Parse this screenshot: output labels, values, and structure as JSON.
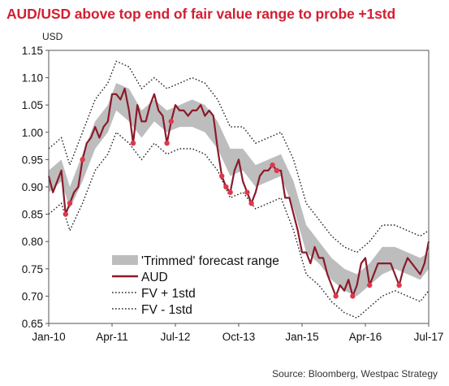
{
  "chart_data": {
    "type": "line",
    "title": "AUD/USD above top end of fair value range to probe +1std",
    "y_unit_label": "USD",
    "source": "Source: Bloomberg, Westpac Strategy",
    "ylim": [
      0.65,
      1.15
    ],
    "y_ticks": [
      "0.65",
      "0.70",
      "0.75",
      "0.80",
      "0.85",
      "0.90",
      "0.95",
      "1.00",
      "1.05",
      "1.10",
      "1.15"
    ],
    "xlim": [
      "2010-01",
      "2017-07"
    ],
    "x_ticks": [
      {
        "label": "Jan-10",
        "date": "2010-01"
      },
      {
        "label": "Apr-11",
        "date": "2011-04"
      },
      {
        "label": "Jul-12",
        "date": "2012-07"
      },
      {
        "label": "Oct-13",
        "date": "2013-10"
      },
      {
        "label": "Jan-15",
        "date": "2015-01"
      },
      {
        "label": "Apr-16",
        "date": "2016-04"
      },
      {
        "label": "Jul-17",
        "date": "2017-07"
      }
    ],
    "grid": false,
    "legend_position": "bottom-left",
    "series": [
      {
        "name": "'Trimmed' forecast range",
        "kind": "band",
        "color": "#bdbdbd",
        "points": [
          {
            "date": "2010-01",
            "low": 0.89,
            "high": 0.93
          },
          {
            "date": "2010-04",
            "low": 0.91,
            "high": 0.95
          },
          {
            "date": "2010-06",
            "low": 0.86,
            "high": 0.9
          },
          {
            "date": "2010-09",
            "low": 0.91,
            "high": 0.96
          },
          {
            "date": "2010-12",
            "low": 0.97,
            "high": 1.02
          },
          {
            "date": "2011-03",
            "low": 1.0,
            "high": 1.05
          },
          {
            "date": "2011-05",
            "low": 1.04,
            "high": 1.09
          },
          {
            "date": "2011-08",
            "low": 1.02,
            "high": 1.08
          },
          {
            "date": "2011-11",
            "low": 0.99,
            "high": 1.04
          },
          {
            "date": "2012-02",
            "low": 1.02,
            "high": 1.06
          },
          {
            "date": "2012-05",
            "low": 1.0,
            "high": 1.04
          },
          {
            "date": "2012-08",
            "low": 1.01,
            "high": 1.05
          },
          {
            "date": "2012-11",
            "low": 1.01,
            "high": 1.06
          },
          {
            "date": "2013-02",
            "low": 1.0,
            "high": 1.05
          },
          {
            "date": "2013-05",
            "low": 0.97,
            "high": 1.02
          },
          {
            "date": "2013-08",
            "low": 0.92,
            "high": 0.97
          },
          {
            "date": "2013-11",
            "low": 0.93,
            "high": 0.97
          },
          {
            "date": "2014-02",
            "low": 0.9,
            "high": 0.94
          },
          {
            "date": "2014-05",
            "low": 0.91,
            "high": 0.95
          },
          {
            "date": "2014-08",
            "low": 0.92,
            "high": 0.96
          },
          {
            "date": "2014-11",
            "low": 0.86,
            "high": 0.91
          },
          {
            "date": "2015-02",
            "low": 0.78,
            "high": 0.83
          },
          {
            "date": "2015-05",
            "low": 0.76,
            "high": 0.8
          },
          {
            "date": "2015-08",
            "low": 0.73,
            "high": 0.77
          },
          {
            "date": "2015-11",
            "low": 0.71,
            "high": 0.75
          },
          {
            "date": "2016-02",
            "low": 0.7,
            "high": 0.74
          },
          {
            "date": "2016-05",
            "low": 0.72,
            "high": 0.76
          },
          {
            "date": "2016-08",
            "low": 0.74,
            "high": 0.79
          },
          {
            "date": "2016-11",
            "low": 0.75,
            "high": 0.79
          },
          {
            "date": "2017-02",
            "low": 0.74,
            "high": 0.78
          },
          {
            "date": "2017-05",
            "low": 0.73,
            "high": 0.77
          },
          {
            "date": "2017-07",
            "low": 0.75,
            "high": 0.78
          }
        ]
      },
      {
        "name": "AUD",
        "kind": "line",
        "color": "#8b1a2b",
        "points": [
          {
            "date": "2010-01",
            "value": 0.92
          },
          {
            "date": "2010-02",
            "value": 0.89
          },
          {
            "date": "2010-03",
            "value": 0.91
          },
          {
            "date": "2010-04",
            "value": 0.93
          },
          {
            "date": "2010-05",
            "value": 0.85
          },
          {
            "date": "2010-06",
            "value": 0.87
          },
          {
            "date": "2010-07",
            "value": 0.89
          },
          {
            "date": "2010-08",
            "value": 0.9
          },
          {
            "date": "2010-09",
            "value": 0.95
          },
          {
            "date": "2010-10",
            "value": 0.98
          },
          {
            "date": "2010-11",
            "value": 0.99
          },
          {
            "date": "2010-12",
            "value": 1.01
          },
          {
            "date": "2011-01",
            "value": 0.99
          },
          {
            "date": "2011-02",
            "value": 1.01
          },
          {
            "date": "2011-03",
            "value": 1.02
          },
          {
            "date": "2011-04",
            "value": 1.07
          },
          {
            "date": "2011-05",
            "value": 1.07
          },
          {
            "date": "2011-06",
            "value": 1.06
          },
          {
            "date": "2011-07",
            "value": 1.08
          },
          {
            "date": "2011-08",
            "value": 1.04
          },
          {
            "date": "2011-09",
            "value": 0.98
          },
          {
            "date": "2011-10",
            "value": 1.05
          },
          {
            "date": "2011-11",
            "value": 1.02
          },
          {
            "date": "2011-12",
            "value": 1.02
          },
          {
            "date": "2012-01",
            "value": 1.05
          },
          {
            "date": "2012-02",
            "value": 1.07
          },
          {
            "date": "2012-03",
            "value": 1.04
          },
          {
            "date": "2012-04",
            "value": 1.03
          },
          {
            "date": "2012-05",
            "value": 0.98
          },
          {
            "date": "2012-06",
            "value": 1.02
          },
          {
            "date": "2012-07",
            "value": 1.05
          },
          {
            "date": "2012-08",
            "value": 1.04
          },
          {
            "date": "2012-09",
            "value": 1.04
          },
          {
            "date": "2012-10",
            "value": 1.03
          },
          {
            "date": "2012-11",
            "value": 1.04
          },
          {
            "date": "2012-12",
            "value": 1.04
          },
          {
            "date": "2013-01",
            "value": 1.05
          },
          {
            "date": "2013-02",
            "value": 1.03
          },
          {
            "date": "2013-03",
            "value": 1.04
          },
          {
            "date": "2013-04",
            "value": 1.03
          },
          {
            "date": "2013-05",
            "value": 0.97
          },
          {
            "date": "2013-06",
            "value": 0.92
          },
          {
            "date": "2013-07",
            "value": 0.9
          },
          {
            "date": "2013-08",
            "value": 0.89
          },
          {
            "date": "2013-09",
            "value": 0.93
          },
          {
            "date": "2013-10",
            "value": 0.95
          },
          {
            "date": "2013-11",
            "value": 0.91
          },
          {
            "date": "2013-12",
            "value": 0.89
          },
          {
            "date": "2014-01",
            "value": 0.87
          },
          {
            "date": "2014-02",
            "value": 0.89
          },
          {
            "date": "2014-03",
            "value": 0.92
          },
          {
            "date": "2014-04",
            "value": 0.93
          },
          {
            "date": "2014-05",
            "value": 0.93
          },
          {
            "date": "2014-06",
            "value": 0.94
          },
          {
            "date": "2014-07",
            "value": 0.93
          },
          {
            "date": "2014-08",
            "value": 0.93
          },
          {
            "date": "2014-09",
            "value": 0.88
          },
          {
            "date": "2014-10",
            "value": 0.88
          },
          {
            "date": "2014-11",
            "value": 0.85
          },
          {
            "date": "2014-12",
            "value": 0.82
          },
          {
            "date": "2015-01",
            "value": 0.78
          },
          {
            "date": "2015-02",
            "value": 0.78
          },
          {
            "date": "2015-03",
            "value": 0.76
          },
          {
            "date": "2015-04",
            "value": 0.79
          },
          {
            "date": "2015-05",
            "value": 0.77
          },
          {
            "date": "2015-06",
            "value": 0.77
          },
          {
            "date": "2015-07",
            "value": 0.74
          },
          {
            "date": "2015-08",
            "value": 0.72
          },
          {
            "date": "2015-09",
            "value": 0.7
          },
          {
            "date": "2015-10",
            "value": 0.72
          },
          {
            "date": "2015-11",
            "value": 0.71
          },
          {
            "date": "2015-12",
            "value": 0.73
          },
          {
            "date": "2016-01",
            "value": 0.7
          },
          {
            "date": "2016-02",
            "value": 0.72
          },
          {
            "date": "2016-03",
            "value": 0.76
          },
          {
            "date": "2016-04",
            "value": 0.77
          },
          {
            "date": "2016-05",
            "value": 0.72
          },
          {
            "date": "2016-06",
            "value": 0.74
          },
          {
            "date": "2016-07",
            "value": 0.76
          },
          {
            "date": "2016-08",
            "value": 0.76
          },
          {
            "date": "2016-09",
            "value": 0.76
          },
          {
            "date": "2016-10",
            "value": 0.76
          },
          {
            "date": "2016-11",
            "value": 0.74
          },
          {
            "date": "2016-12",
            "value": 0.72
          },
          {
            "date": "2017-01",
            "value": 0.75
          },
          {
            "date": "2017-02",
            "value": 0.77
          },
          {
            "date": "2017-03",
            "value": 0.76
          },
          {
            "date": "2017-04",
            "value": 0.75
          },
          {
            "date": "2017-05",
            "value": 0.74
          },
          {
            "date": "2017-06",
            "value": 0.76
          },
          {
            "date": "2017-07",
            "value": 0.8
          }
        ]
      },
      {
        "name": "FV + 1std",
        "kind": "dotted",
        "color": "#222222",
        "offset_above_band_high": 0.04
      },
      {
        "name": "FV - 1std",
        "kind": "dotted",
        "color": "#222222",
        "offset_below_band_low": 0.04
      }
    ],
    "highlight_markers": {
      "color": "#e0374a",
      "dates": [
        "2010-05",
        "2010-06",
        "2010-09",
        "2011-09",
        "2012-05",
        "2012-06",
        "2013-06",
        "2013-07",
        "2013-08",
        "2013-12",
        "2014-01",
        "2014-06",
        "2014-07",
        "2015-09",
        "2016-01",
        "2016-05",
        "2016-12"
      ]
    }
  }
}
